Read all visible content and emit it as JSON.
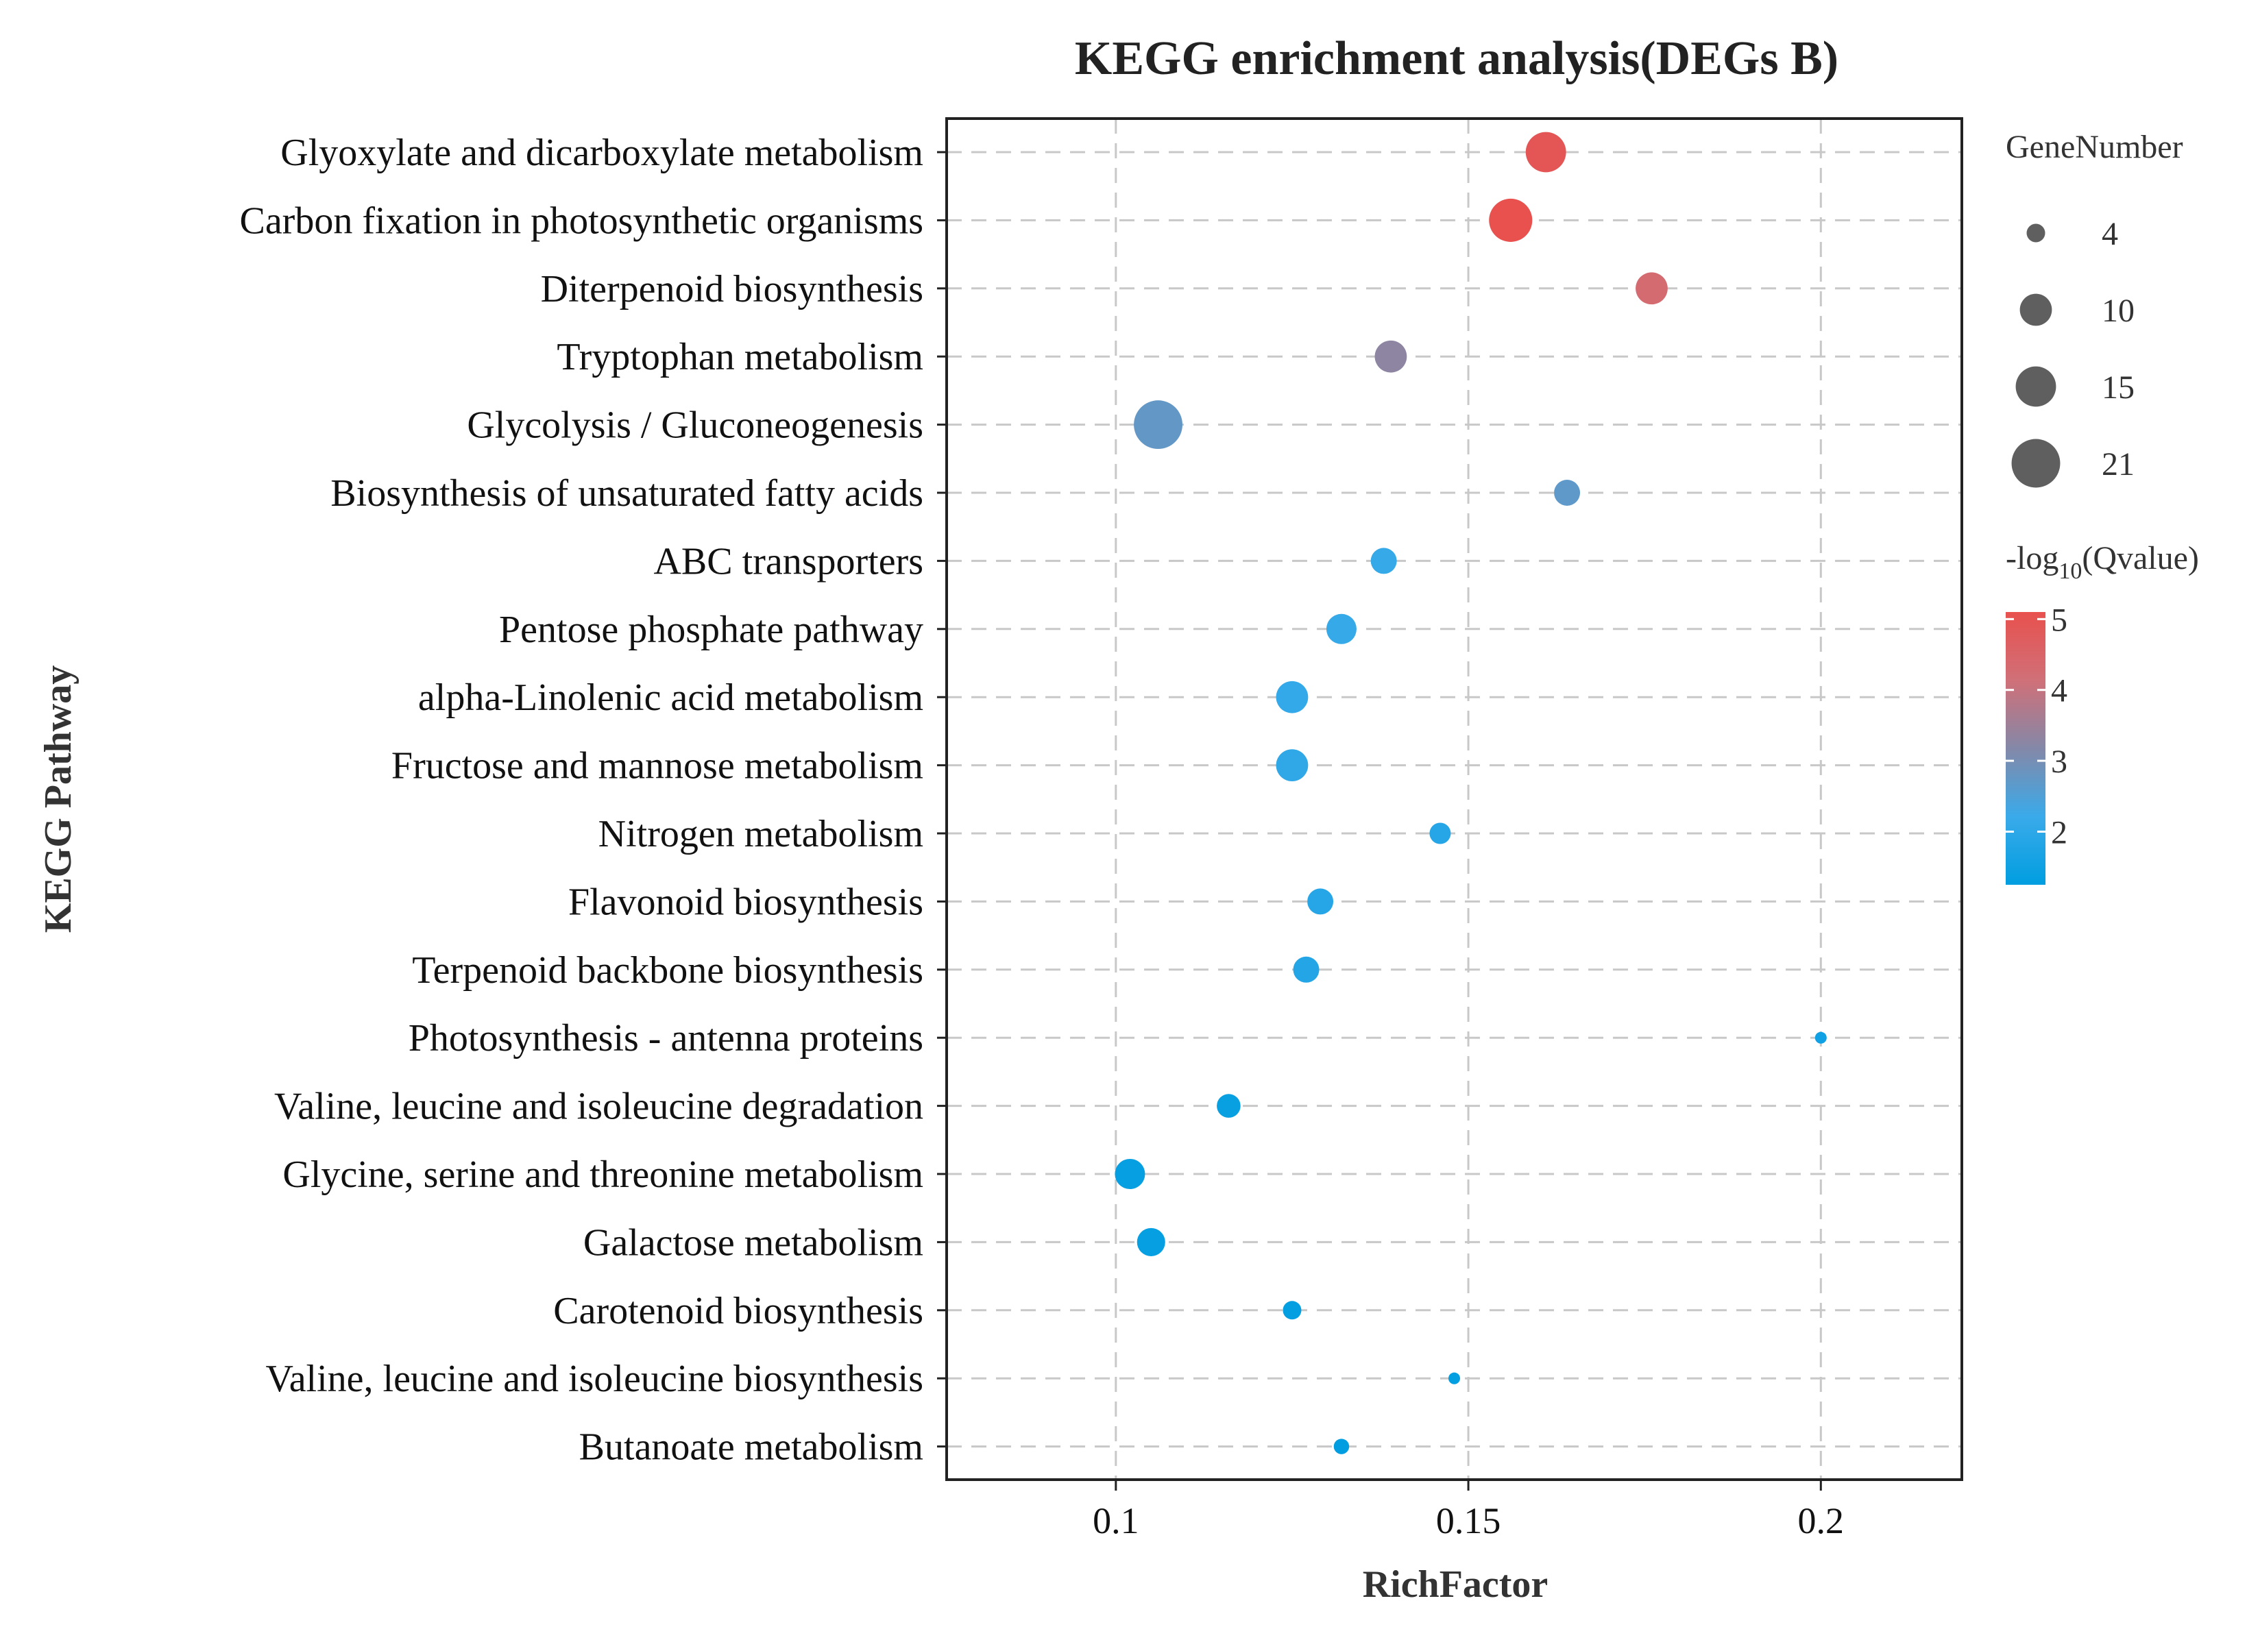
{
  "chart_data": {
    "type": "scatter",
    "title": "KEGG enrichment analysis(DEGs B)",
    "xlabel": "RichFactor",
    "ylabel": "KEGG Pathway",
    "xlim": [
      0.076,
      0.22
    ],
    "xticks": [
      0.1,
      0.15,
      0.2
    ],
    "xtick_labels": [
      "0.1",
      "0.15",
      "0.2"
    ],
    "grid": true,
    "legend_position": "right",
    "size_legend": {
      "title": "GeneNumber",
      "values": [
        4,
        10,
        15,
        21
      ],
      "labels": [
        "4",
        "10",
        "15",
        "21"
      ]
    },
    "color_legend": {
      "title_prefix": "-log",
      "title_subscript": "10",
      "title_suffix": "(Qvalue)",
      "min": 1.25,
      "max": 5.1,
      "ticks": [
        2,
        3,
        4,
        5
      ],
      "tick_labels": [
        "2",
        "3",
        "4",
        "5"
      ],
      "colors": [
        "#009ee0",
        "#3aaaea",
        "#8488a8",
        "#d07078",
        "#e8514e"
      ]
    },
    "points": [
      {
        "pathway": "Glyoxylate and dicarboxylate metabolism",
        "rich_factor": 0.161,
        "gene_number": 15,
        "neg_log10_q": 4.95
      },
      {
        "pathway": "Carbon fixation in photosynthetic organisms",
        "rich_factor": 0.156,
        "gene_number": 17,
        "neg_log10_q": 5.1
      },
      {
        "pathway": "Diterpenoid biosynthesis",
        "rich_factor": 0.176,
        "gene_number": 10,
        "neg_log10_q": 4.3
      },
      {
        "pathway": "Tryptophan metabolism",
        "rich_factor": 0.139,
        "gene_number": 10,
        "neg_log10_q": 3.3
      },
      {
        "pathway": "Glycolysis / Gluconeogenesis",
        "rich_factor": 0.106,
        "gene_number": 21,
        "neg_log10_q": 2.75
      },
      {
        "pathway": "Biosynthesis of unsaturated fatty acids",
        "rich_factor": 0.164,
        "gene_number": 7,
        "neg_log10_q": 2.7
      },
      {
        "pathway": "ABC transporters",
        "rich_factor": 0.138,
        "gene_number": 7,
        "neg_log10_q": 2.15
      },
      {
        "pathway": "Pentose phosphate pathway",
        "rich_factor": 0.132,
        "gene_number": 9,
        "neg_log10_q": 2.15
      },
      {
        "pathway": "alpha-Linolenic acid metabolism",
        "rich_factor": 0.125,
        "gene_number": 10,
        "neg_log10_q": 2.1
      },
      {
        "pathway": "Fructose and mannose metabolism",
        "rich_factor": 0.125,
        "gene_number": 10,
        "neg_log10_q": 2.05
      },
      {
        "pathway": "Nitrogen metabolism",
        "rich_factor": 0.146,
        "gene_number": 5,
        "neg_log10_q": 1.9
      },
      {
        "pathway": "Flavonoid biosynthesis",
        "rich_factor": 0.129,
        "gene_number": 7,
        "neg_log10_q": 1.9
      },
      {
        "pathway": "Terpenoid backbone biosynthesis",
        "rich_factor": 0.127,
        "gene_number": 7,
        "neg_log10_q": 1.85
      },
      {
        "pathway": "Photosynthesis - antenna proteins",
        "rich_factor": 0.2,
        "gene_number": 2,
        "neg_log10_q": 1.5
      },
      {
        "pathway": "Valine, leucine and isoleucine degradation",
        "rich_factor": 0.116,
        "gene_number": 6,
        "neg_log10_q": 1.4
      },
      {
        "pathway": "Glycine, serine and threonine metabolism",
        "rich_factor": 0.102,
        "gene_number": 9,
        "neg_log10_q": 1.35
      },
      {
        "pathway": "Galactose metabolism",
        "rich_factor": 0.105,
        "gene_number": 8,
        "neg_log10_q": 1.35
      },
      {
        "pathway": "Carotenoid biosynthesis",
        "rich_factor": 0.125,
        "gene_number": 4,
        "neg_log10_q": 1.3
      },
      {
        "pathway": "Valine, leucine and isoleucine biosynthesis",
        "rich_factor": 0.148,
        "gene_number": 2,
        "neg_log10_q": 1.3
      },
      {
        "pathway": "Butanoate metabolism",
        "rich_factor": 0.132,
        "gene_number": 3,
        "neg_log10_q": 1.25
      }
    ]
  }
}
